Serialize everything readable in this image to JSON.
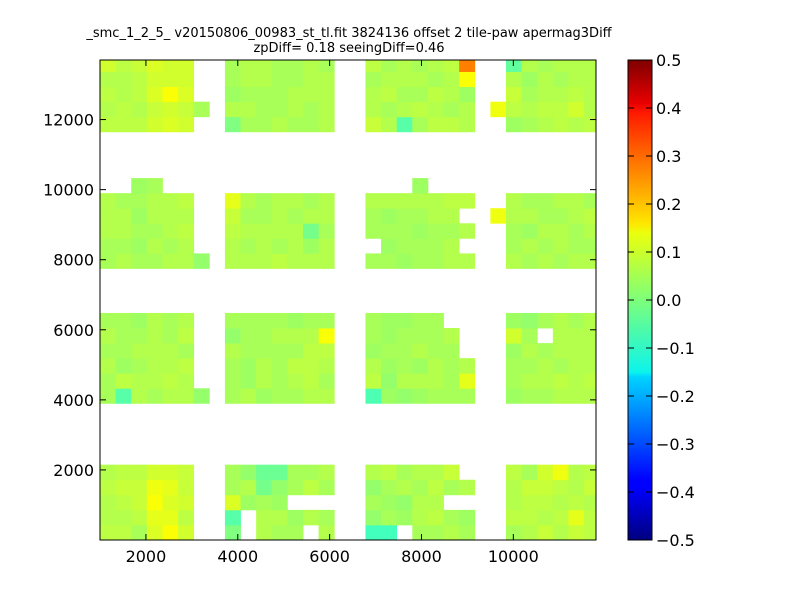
{
  "title_lines": [
    "_smc_1_2_5_ v20150806_00983_st_tl.fit 3824136 offset 2 tile-paw apermag3Diff",
    "zpDiff= 0.18 seeingDiff=0.46"
  ],
  "chart_data": {
    "type": "heatmap",
    "title": "_smc_1_2_5_ v20150806_00983_st_tl.fit 3824136 offset 2 tile-paw apermag3Diff zpDiff= 0.18 seeingDiff=0.46",
    "xlabel": "",
    "ylabel": "",
    "xlim": [
      1000,
      11800
    ],
    "ylim": [
      0,
      13700
    ],
    "x_ticks": [
      2000,
      4000,
      6000,
      8000,
      10000
    ],
    "y_ticks": [
      2000,
      4000,
      6000,
      8000,
      10000,
      12000
    ],
    "colormap": "jet",
    "colorbar": {
      "min": -0.5,
      "max": 0.5,
      "ticks": [
        -0.5,
        -0.4,
        -0.3,
        -0.2,
        -0.1,
        0.0,
        0.1,
        0.2,
        0.3,
        0.4,
        0.5
      ]
    },
    "cell_size": [
      340,
      430
    ],
    "columns_x0": [
      1000,
      1340,
      1680,
      2020,
      2360,
      2700,
      3040,
      3720,
      4060,
      4400,
      4740,
      5080,
      5420,
      5760,
      6780,
      7120,
      7460,
      7800,
      8140,
      8480,
      8820,
      9500,
      9840,
      10180,
      10520,
      10860,
      11200,
      11540
    ],
    "bands": [
      {
        "y_bottom": 0,
        "values": [
          [
            0.06,
            0.06,
            0.04,
            0.09,
            0.12,
            0.08,
            null,
            0.0,
            null,
            0.05,
            0.04,
            0.04,
            null,
            0.05,
            -0.06,
            -0.06,
            null,
            0.04,
            0.04,
            0.05,
            0.04,
            null,
            0.04,
            0.05,
            0.07,
            0.05,
            0.07,
            0.06
          ],
          [
            0.05,
            0.05,
            0.06,
            0.1,
            0.1,
            0.06,
            null,
            -0.04,
            null,
            0.05,
            0.05,
            0.03,
            0.05,
            0.04,
            0.02,
            0.04,
            0.03,
            0.05,
            0.06,
            0.04,
            0.03,
            null,
            0.06,
            0.06,
            0.05,
            0.06,
            0.1,
            0.06
          ],
          [
            0.05,
            0.06,
            0.07,
            0.12,
            0.09,
            0.08,
            null,
            0.09,
            0.03,
            0.04,
            0.03,
            null,
            null,
            null,
            0.04,
            0.03,
            0.02,
            0.05,
            0.05,
            null,
            null,
            null,
            0.05,
            0.06,
            0.06,
            0.05,
            0.06,
            0.05
          ],
          [
            0.06,
            0.07,
            0.07,
            0.11,
            0.1,
            0.07,
            null,
            0.04,
            0.05,
            -0.01,
            0.02,
            0.04,
            0.06,
            0.04,
            0.02,
            0.04,
            0.05,
            0.04,
            0.06,
            0.04,
            0.05,
            null,
            0.05,
            0.07,
            0.07,
            0.06,
            0.05,
            0.07
          ],
          [
            0.05,
            0.06,
            0.06,
            0.08,
            0.08,
            0.07,
            null,
            0.04,
            0.02,
            -0.02,
            -0.02,
            0.04,
            0.04,
            0.05,
            0.05,
            0.06,
            0.04,
            0.05,
            0.05,
            0.07,
            null,
            null,
            0.06,
            0.04,
            0.08,
            0.11,
            0.05,
            0.06
          ]
        ]
      },
      {
        "y_bottom": 3900,
        "values": [
          [
            0.04,
            -0.04,
            0.05,
            0.04,
            0.05,
            0.05,
            0.02,
            0.04,
            0.05,
            0.03,
            0.04,
            0.04,
            0.05,
            0.05,
            -0.05,
            0.03,
            0.02,
            0.03,
            0.04,
            0.04,
            0.04,
            null,
            0.03,
            0.04,
            0.04,
            0.05,
            0.05,
            0.05
          ],
          [
            0.04,
            0.06,
            0.05,
            0.05,
            0.06,
            0.05,
            null,
            0.04,
            0.03,
            0.05,
            0.04,
            0.05,
            0.06,
            0.04,
            0.06,
            0.02,
            0.05,
            0.05,
            0.05,
            0.04,
            0.1,
            null,
            0.04,
            0.05,
            0.05,
            0.06,
            0.05,
            0.06
          ],
          [
            0.05,
            0.03,
            0.04,
            0.05,
            0.05,
            0.06,
            null,
            0.04,
            0.03,
            0.05,
            0.04,
            0.06,
            0.06,
            0.05,
            0.05,
            0.03,
            0.04,
            0.03,
            0.05,
            0.04,
            0.05,
            null,
            0.04,
            0.04,
            0.05,
            0.04,
            0.05,
            0.05
          ],
          [
            0.04,
            0.04,
            0.05,
            0.05,
            0.05,
            0.04,
            null,
            0.05,
            0.04,
            0.04,
            0.04,
            0.04,
            0.06,
            0.06,
            0.03,
            0.04,
            0.04,
            0.05,
            0.04,
            0.04,
            null,
            null,
            0.03,
            0.05,
            0.04,
            0.05,
            0.05,
            0.05
          ],
          [
            0.05,
            0.04,
            0.04,
            0.05,
            0.04,
            0.06,
            null,
            0.02,
            0.04,
            0.04,
            0.05,
            0.05,
            0.05,
            0.12,
            0.04,
            0.03,
            0.04,
            0.04,
            0.04,
            0.05,
            null,
            null,
            0.08,
            0.04,
            null,
            0.05,
            0.05,
            0.05
          ],
          [
            0.04,
            0.04,
            0.03,
            0.05,
            0.04,
            0.05,
            null,
            0.04,
            0.04,
            0.04,
            0.04,
            0.03,
            0.04,
            0.04,
            0.04,
            0.03,
            0.03,
            0.04,
            0.04,
            null,
            null,
            null,
            0.03,
            0.02,
            0.04,
            0.05,
            0.04,
            0.05
          ]
        ]
      },
      {
        "y_bottom": 7750,
        "values": [
          [
            0.04,
            0.05,
            0.04,
            0.04,
            0.05,
            0.05,
            0.02,
            0.05,
            0.05,
            0.05,
            0.06,
            0.05,
            0.05,
            0.05,
            0.04,
            0.04,
            0.03,
            0.04,
            0.04,
            0.05,
            0.05,
            null,
            0.05,
            0.04,
            0.05,
            0.04,
            0.05,
            0.05
          ],
          [
            0.04,
            0.04,
            0.03,
            0.05,
            0.04,
            0.05,
            null,
            0.05,
            0.04,
            0.05,
            0.04,
            0.05,
            0.03,
            0.05,
            null,
            0.03,
            0.04,
            0.04,
            0.04,
            0.05,
            null,
            null,
            0.04,
            0.05,
            0.04,
            0.05,
            0.04,
            0.04
          ],
          [
            0.05,
            0.05,
            0.04,
            0.04,
            0.05,
            0.06,
            null,
            0.06,
            0.05,
            0.05,
            0.05,
            0.05,
            -0.01,
            0.04,
            0.04,
            0.04,
            0.04,
            0.03,
            0.04,
            0.04,
            0.05,
            null,
            0.04,
            0.03,
            0.05,
            0.05,
            0.04,
            0.05
          ],
          [
            0.05,
            0.05,
            0.03,
            0.05,
            0.05,
            0.05,
            null,
            0.07,
            0.04,
            0.04,
            0.05,
            0.04,
            0.05,
            0.05,
            0.04,
            0.03,
            0.04,
            0.04,
            0.05,
            0.05,
            null,
            0.11,
            0.05,
            0.05,
            0.04,
            0.04,
            0.05,
            0.06
          ],
          [
            0.05,
            0.04,
            0.04,
            0.05,
            0.05,
            0.06,
            null,
            0.1,
            0.05,
            0.04,
            0.05,
            0.05,
            0.04,
            0.05,
            0.05,
            0.05,
            0.05,
            0.05,
            0.05,
            0.06,
            0.06,
            null,
            0.05,
            0.04,
            0.04,
            0.05,
            0.05,
            0.04
          ],
          [
            null,
            null,
            0.03,
            0.04,
            null,
            null,
            null,
            null,
            null,
            null,
            null,
            null,
            null,
            null,
            null,
            null,
            null,
            0.03,
            null,
            null,
            null,
            null,
            null,
            null,
            null,
            null,
            null,
            null
          ]
        ]
      },
      {
        "y_bottom": 11650,
        "values": [
          [
            0.06,
            0.06,
            0.06,
            0.08,
            0.09,
            0.08,
            null,
            0.0,
            0.04,
            0.04,
            0.05,
            0.04,
            0.04,
            0.05,
            0.07,
            0.05,
            -0.04,
            0.04,
            0.06,
            0.06,
            0.05,
            null,
            0.03,
            0.04,
            0.05,
            0.06,
            0.05,
            0.06
          ],
          [
            0.05,
            0.06,
            0.05,
            0.07,
            0.08,
            0.07,
            0.04,
            0.05,
            0.05,
            0.04,
            0.04,
            0.05,
            0.04,
            0.05,
            0.05,
            0.04,
            0.05,
            0.06,
            0.05,
            0.04,
            0.05,
            0.11,
            0.06,
            0.05,
            0.06,
            0.06,
            0.08,
            0.05
          ],
          [
            0.06,
            0.05,
            0.06,
            0.09,
            0.12,
            0.09,
            null,
            0.03,
            0.04,
            0.04,
            0.04,
            0.05,
            0.05,
            0.05,
            0.05,
            0.06,
            0.04,
            0.04,
            0.06,
            0.05,
            0.03,
            null,
            0.07,
            0.04,
            0.05,
            0.05,
            0.06,
            0.05
          ],
          [
            0.05,
            0.05,
            0.06,
            0.08,
            0.08,
            0.08,
            null,
            0.04,
            0.05,
            0.05,
            0.04,
            0.04,
            0.05,
            0.05,
            0.04,
            0.05,
            0.05,
            0.05,
            0.04,
            0.05,
            0.12,
            null,
            0.05,
            0.03,
            0.05,
            0.04,
            0.05,
            0.05
          ],
          [
            0.08,
            0.06,
            0.07,
            0.09,
            0.08,
            0.08,
            null,
            0.04,
            0.05,
            0.05,
            0.04,
            0.04,
            0.05,
            0.04,
            0.06,
            0.04,
            0.05,
            0.04,
            0.05,
            0.06,
            0.25,
            null,
            -0.03,
            0.05,
            0.04,
            0.05,
            0.05,
            0.05
          ]
        ]
      }
    ]
  }
}
